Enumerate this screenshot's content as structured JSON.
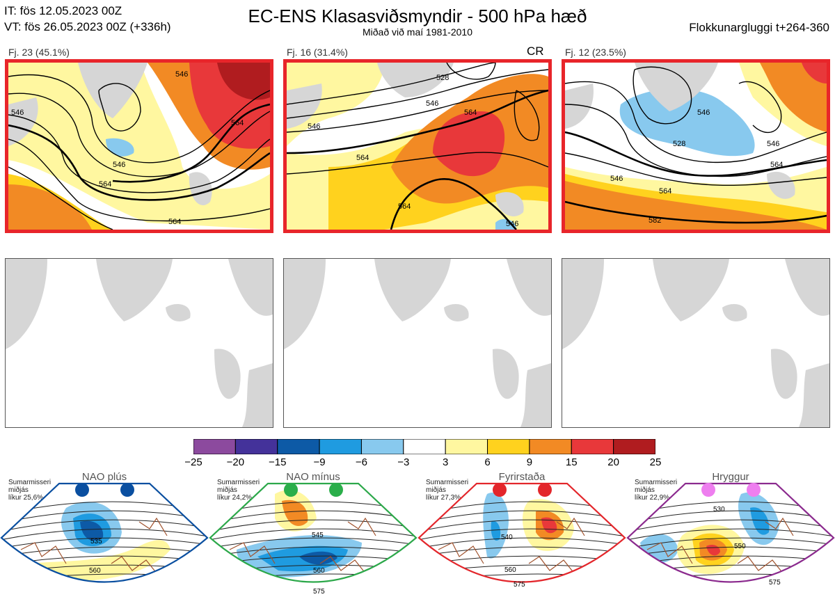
{
  "header": {
    "it_line": "IT: fös 12.05.2023 00Z",
    "vt_line": "VT: fös 26.05.2023 00Z  (+336h)",
    "title": "EC-ENS Klasasviðsmyndir - 500 hPa hæð",
    "subtitle": "Miðað við maí 1981-2010",
    "window": "Flokkunargluggi t+264-360"
  },
  "panels": [
    {
      "label": "Fj. 23 (45.1%)",
      "tag": "",
      "contours": [
        "546",
        "564",
        "564",
        "546",
        "546",
        "564"
      ]
    },
    {
      "label": "Fj. 16 (31.4%)",
      "tag": "CR",
      "contours": [
        "546",
        "564",
        "546",
        "564",
        "564",
        "546",
        "528"
      ]
    },
    {
      "label": "Fj. 12 (23.5%)",
      "tag": "",
      "contours": [
        "546",
        "564",
        "582",
        "546",
        "528",
        "546",
        "564"
      ]
    }
  ],
  "colorbar": {
    "ticks": [
      "−25",
      "−20",
      "−15",
      "−9",
      "−6",
      "−3",
      "3",
      "6",
      "9",
      "15",
      "20",
      "25"
    ],
    "colors": [
      "#8c4a9e",
      "#44329a",
      "#0d5aa6",
      "#1f9be0",
      "#88c9ee",
      "#ffffff",
      "#fff7a0",
      "#ffd21e",
      "#f28a24",
      "#e8383a",
      "#b01c1f"
    ]
  },
  "regimes": [
    {
      "name": "NAO plús",
      "season": "Sumarmisseri",
      "mid": "miðjás",
      "prob": "líkur 25,6%",
      "color": "#0a4fa0",
      "dot": "#0a4fa0",
      "contours": [
        "535",
        "560"
      ]
    },
    {
      "name": "NAO mínus",
      "season": "Sumarmisseri",
      "mid": "miðjás",
      "prob": "líkur 24,2%",
      "color": "#2ca84a",
      "dot": "#2aae4a",
      "contours": [
        "545",
        "560",
        "575"
      ]
    },
    {
      "name": "Fyrirstaða",
      "season": "Sumarmisseri",
      "mid": "miðjás",
      "prob": "líkur 27,3%",
      "color": "#e3262b",
      "dot": "#e3262b",
      "contours": [
        "540",
        "560",
        "575"
      ]
    },
    {
      "name": "Hryggur",
      "season": "Sumarmisseri",
      "mid": "miðjás",
      "prob": "líkur 22,9%",
      "color": "#8b2a8e",
      "dot": "#ee7eef",
      "contours": [
        "530",
        "550",
        "575"
      ]
    }
  ],
  "chart_data": {
    "type": "heatmap",
    "title": "EC-ENS Klasasviðsmyndir - 500 hPa hæð",
    "variable": "500 hPa height anomaly (dam)",
    "colorbar_bounds": [
      -25,
      -20,
      -15,
      -9,
      -6,
      -3,
      3,
      6,
      9,
      15,
      20,
      25
    ],
    "clusters": [
      {
        "name": "Fj. 23",
        "share_percent": 45.1
      },
      {
        "name": "Fj. 16",
        "share_percent": 31.4
      },
      {
        "name": "Fj. 12",
        "share_percent": 23.5
      }
    ],
    "regime_probabilities_percent": {
      "NAO plús": 25.6,
      "NAO mínus": 24.2,
      "Fyrirstaða": 27.3,
      "Hryggur": 22.9
    }
  }
}
